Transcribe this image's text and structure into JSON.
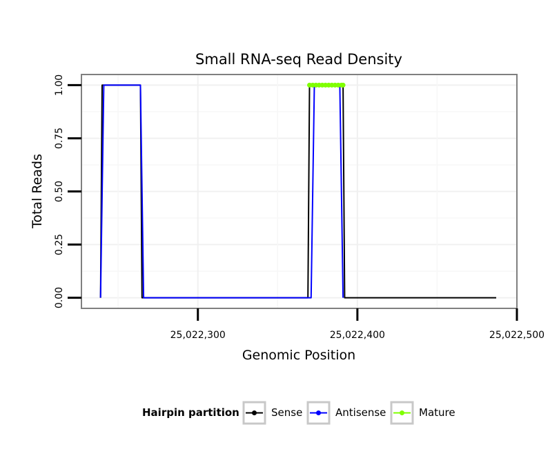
{
  "chart_data": {
    "type": "line",
    "title": "Small RNA-seq Read Density",
    "xlabel": "Genomic Position",
    "ylabel": "Total Reads",
    "xlim": [
      25022227,
      25022500
    ],
    "ylim": [
      -0.05,
      1.05
    ],
    "x_ticks": [
      {
        "value": 25022300,
        "label": "25,022,300"
      },
      {
        "value": 25022400,
        "label": "25,022,400"
      },
      {
        "value": 25022500,
        "label": "25,022,500"
      }
    ],
    "y_ticks": [
      {
        "value": 0.0,
        "label": "0.00"
      },
      {
        "value": 0.25,
        "label": "0.25"
      },
      {
        "value": 0.5,
        "label": "0.50"
      },
      {
        "value": 0.75,
        "label": "0.75"
      },
      {
        "value": 1.0,
        "label": "1.00"
      }
    ],
    "grid": true,
    "legend": {
      "title": "Hairpin partition",
      "position": "bottom"
    },
    "series": [
      {
        "name": "Sense",
        "color": "#000000",
        "x": [
          25022239,
          25022240,
          25022264,
          25022265,
          25022369,
          25022370,
          25022391,
          25022392,
          25022487
        ],
        "values": [
          0,
          1,
          1,
          0,
          0,
          1,
          1,
          0,
          0
        ]
      },
      {
        "name": "Antisense",
        "color": "#0000ff",
        "x": [
          25022239,
          25022241,
          25022264,
          25022266,
          25022371,
          25022373,
          25022389,
          25022391
        ],
        "values": [
          0,
          1,
          1,
          0,
          0,
          1,
          1,
          0
        ]
      },
      {
        "name": "Mature",
        "color": "#7fff00",
        "x": [
          25022370,
          25022372,
          25022374,
          25022376,
          25022378,
          25022380,
          25022382,
          25022384,
          25022386,
          25022388,
          25022390,
          25022391
        ],
        "values": [
          1,
          1,
          1,
          1,
          1,
          1,
          1,
          1,
          1,
          1,
          1,
          1
        ]
      }
    ]
  }
}
